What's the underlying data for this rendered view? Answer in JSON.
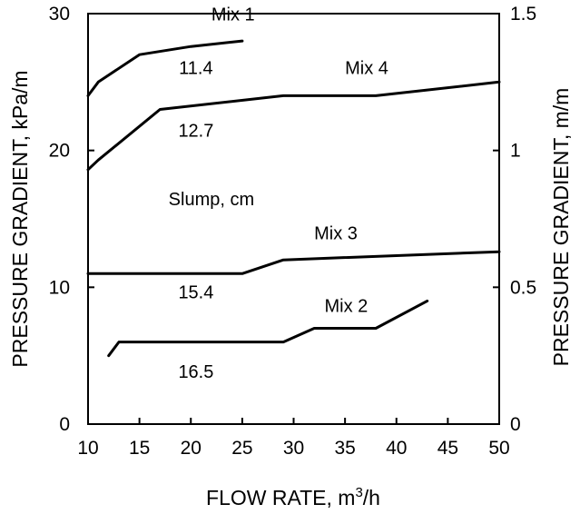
{
  "chart_data": {
    "type": "line",
    "xlabel": "FLOW RATE, m³/h",
    "ylabel": "PRESSURE GRADIENT, kPa/m",
    "ylabel_right": "PRESSURE GRADIENT, m/m",
    "xlim": [
      10,
      50
    ],
    "ylim": [
      0,
      30
    ],
    "ylim_right": [
      0,
      1.5
    ],
    "x_ticks": [
      "10",
      "15",
      "20",
      "25",
      "30",
      "35",
      "40",
      "45",
      "50"
    ],
    "y_ticks": [
      "0",
      "10",
      "20",
      "30"
    ],
    "y_ticks_right": [
      "0",
      "0.5",
      "1",
      "1.5"
    ],
    "grid": false,
    "series": [
      {
        "name": "Mix 1",
        "x": [
          10,
          11,
          15,
          20,
          25
        ],
        "y": [
          24,
          25,
          27,
          27.6,
          28
        ]
      },
      {
        "name": "Mix 4",
        "x": [
          10,
          11,
          17,
          29,
          38,
          50
        ],
        "y": [
          18.6,
          19.3,
          23,
          24,
          24,
          25
        ]
      },
      {
        "name": "Mix 3",
        "x": [
          10,
          25,
          29,
          50
        ],
        "y": [
          11,
          11,
          12,
          12.6
        ]
      },
      {
        "name": "Mix 2",
        "x": [
          12,
          13,
          29,
          32,
          38,
          43
        ],
        "y": [
          5,
          6,
          6,
          7,
          7,
          9
        ]
      }
    ],
    "annotations": [
      {
        "text": "Slump, cm",
        "x": 22,
        "y": 16
      },
      {
        "text": "11.4",
        "x": 20.5,
        "y": 25.6
      },
      {
        "text": "12.7",
        "x": 20.5,
        "y": 21
      },
      {
        "text": "15.4",
        "x": 20.5,
        "y": 9.2
      },
      {
        "text": "16.5",
        "x": 20.5,
        "y": 3.4
      }
    ]
  }
}
